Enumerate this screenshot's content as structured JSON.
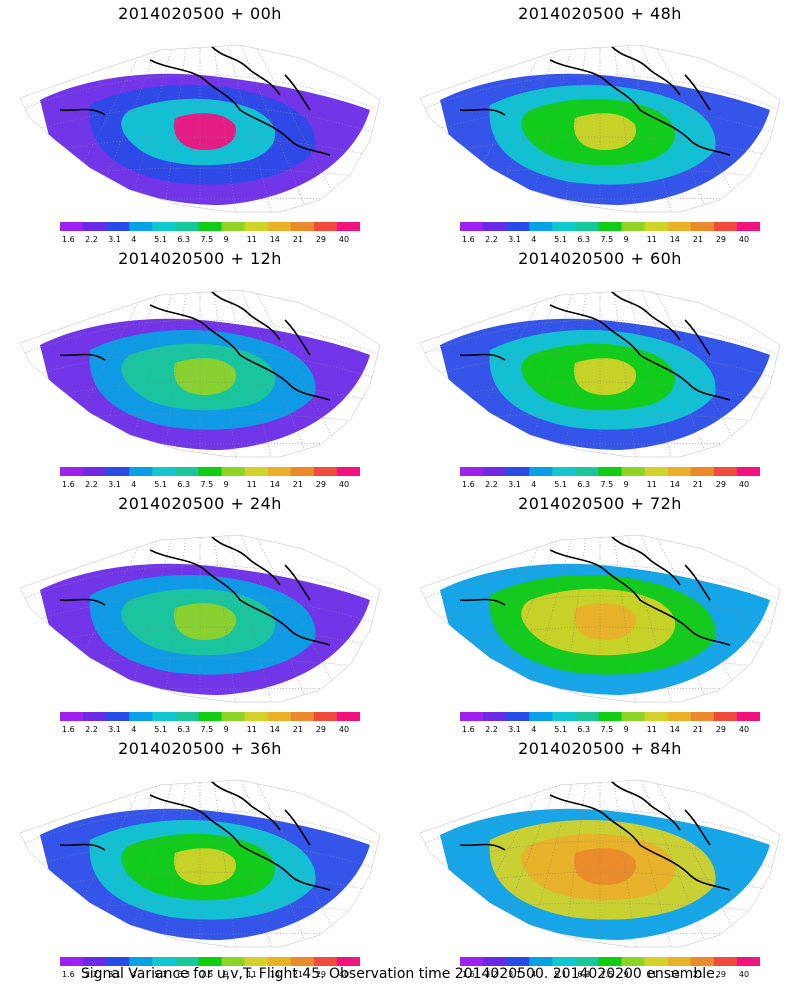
{
  "caption": "Signal Variance for u,v,T. Flight 45. Observation time 2014020500. 2014020200 ensemble.",
  "colorbar": {
    "ticks": [
      "1.6",
      "2.2",
      "3.1",
      "4",
      "5.1",
      "6.3",
      "7.5",
      "9",
      "11",
      "14",
      "21",
      "29",
      "40"
    ],
    "colors": [
      "#a020f0",
      "#6a2ae6",
      "#2a4be8",
      "#0aa0e6",
      "#12c6d2",
      "#1ac69a",
      "#12cc12",
      "#8ed22a",
      "#d2d22a",
      "#eab02a",
      "#ea8a2a",
      "#f04a3a",
      "#f0137f"
    ]
  },
  "chart_data": [
    {
      "type": "heatmap",
      "title": "2014020500 + 00h",
      "forecast_hour": 0,
      "dominant_levels": [
        1,
        2,
        4,
        12
      ]
    },
    {
      "type": "heatmap",
      "title": "2014020500 + 48h",
      "forecast_hour": 48,
      "dominant_levels": [
        2,
        4,
        6,
        8
      ]
    },
    {
      "type": "heatmap",
      "title": "2014020500 + 12h",
      "forecast_hour": 12,
      "dominant_levels": [
        1,
        3,
        5,
        7
      ]
    },
    {
      "type": "heatmap",
      "title": "2014020500 + 60h",
      "forecast_hour": 60,
      "dominant_levels": [
        2,
        4,
        6,
        8
      ]
    },
    {
      "type": "heatmap",
      "title": "2014020500 + 24h",
      "forecast_hour": 24,
      "dominant_levels": [
        1,
        3,
        5,
        7
      ]
    },
    {
      "type": "heatmap",
      "title": "2014020500 + 72h",
      "forecast_hour": 72,
      "dominant_levels": [
        3,
        6,
        8,
        9
      ]
    },
    {
      "type": "heatmap",
      "title": "2014020500 + 36h",
      "forecast_hour": 36,
      "dominant_levels": [
        2,
        4,
        6,
        8
      ]
    },
    {
      "type": "heatmap",
      "title": "2014020500 + 84h",
      "forecast_hour": 84,
      "dominant_levels": [
        3,
        8,
        9,
        10
      ]
    }
  ]
}
